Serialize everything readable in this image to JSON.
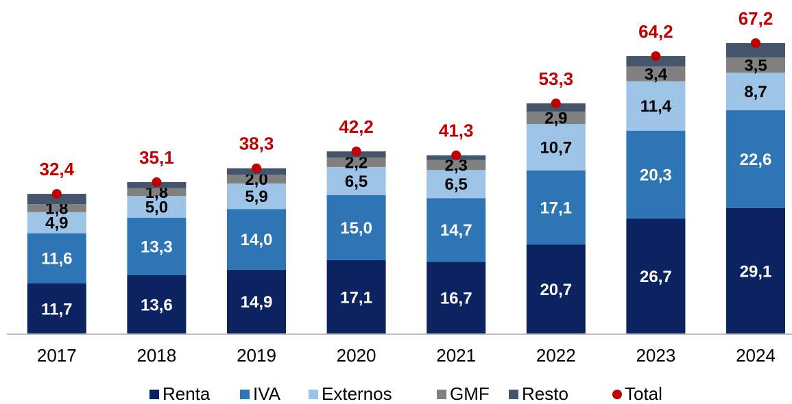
{
  "chart_data": {
    "type": "stacked_bar",
    "categories": [
      "2017",
      "2018",
      "2019",
      "2020",
      "2021",
      "2022",
      "2023",
      "2024"
    ],
    "ylim": [
      0,
      74
    ],
    "series": [
      {
        "name": "Renta",
        "color": "#0b2360",
        "label_color": "#ffffff",
        "show_labels": true,
        "values": [
          11.7,
          13.6,
          14.9,
          17.1,
          16.7,
          20.7,
          26.7,
          29.1
        ],
        "value_labels": [
          "11,7",
          "13,6",
          "14,9",
          "17,1",
          "16,7",
          "20,7",
          "26,7",
          "29,1"
        ]
      },
      {
        "name": "IVA",
        "color": "#2e75b6",
        "label_color": "#ffffff",
        "show_labels": true,
        "values": [
          11.6,
          13.3,
          14.0,
          15.0,
          14.7,
          17.1,
          20.3,
          22.6
        ],
        "value_labels": [
          "11,6",
          "13,3",
          "14,0",
          "15,0",
          "14,7",
          "17,1",
          "20,3",
          "22,6"
        ]
      },
      {
        "name": "Externos",
        "color": "#9dc3e6",
        "label_color": "#000000",
        "show_labels": true,
        "values": [
          4.9,
          5.0,
          5.9,
          6.5,
          6.5,
          10.7,
          11.4,
          8.7
        ],
        "value_labels": [
          "4,9",
          "5,0",
          "5,9",
          "6,5",
          "6,5",
          "10,7",
          "11,4",
          "8,7"
        ]
      },
      {
        "name": "GMF",
        "color": "#808080",
        "label_color": "#000000",
        "show_labels": true,
        "values": [
          1.8,
          1.8,
          2.0,
          2.2,
          2.3,
          2.9,
          3.4,
          3.5
        ],
        "value_labels": [
          "1,8",
          "1,8",
          "2,0",
          "2,2",
          "2,3",
          "2,9",
          "3,4",
          "3,5"
        ]
      },
      {
        "name": "Resto",
        "color": "#44546a",
        "label_color": "#ffffff",
        "show_labels": false,
        "values": [
          2.4,
          1.4,
          1.5,
          1.4,
          1.1,
          1.9,
          2.4,
          3.3
        ]
      }
    ],
    "total": {
      "name": "Total",
      "color": "#c00000",
      "values": [
        32.4,
        35.1,
        38.3,
        42.2,
        41.3,
        53.3,
        64.2,
        67.2
      ],
      "value_labels": [
        "32,4",
        "35,1",
        "38,3",
        "42,2",
        "41,3",
        "53,3",
        "64,2",
        "67,2"
      ]
    }
  }
}
